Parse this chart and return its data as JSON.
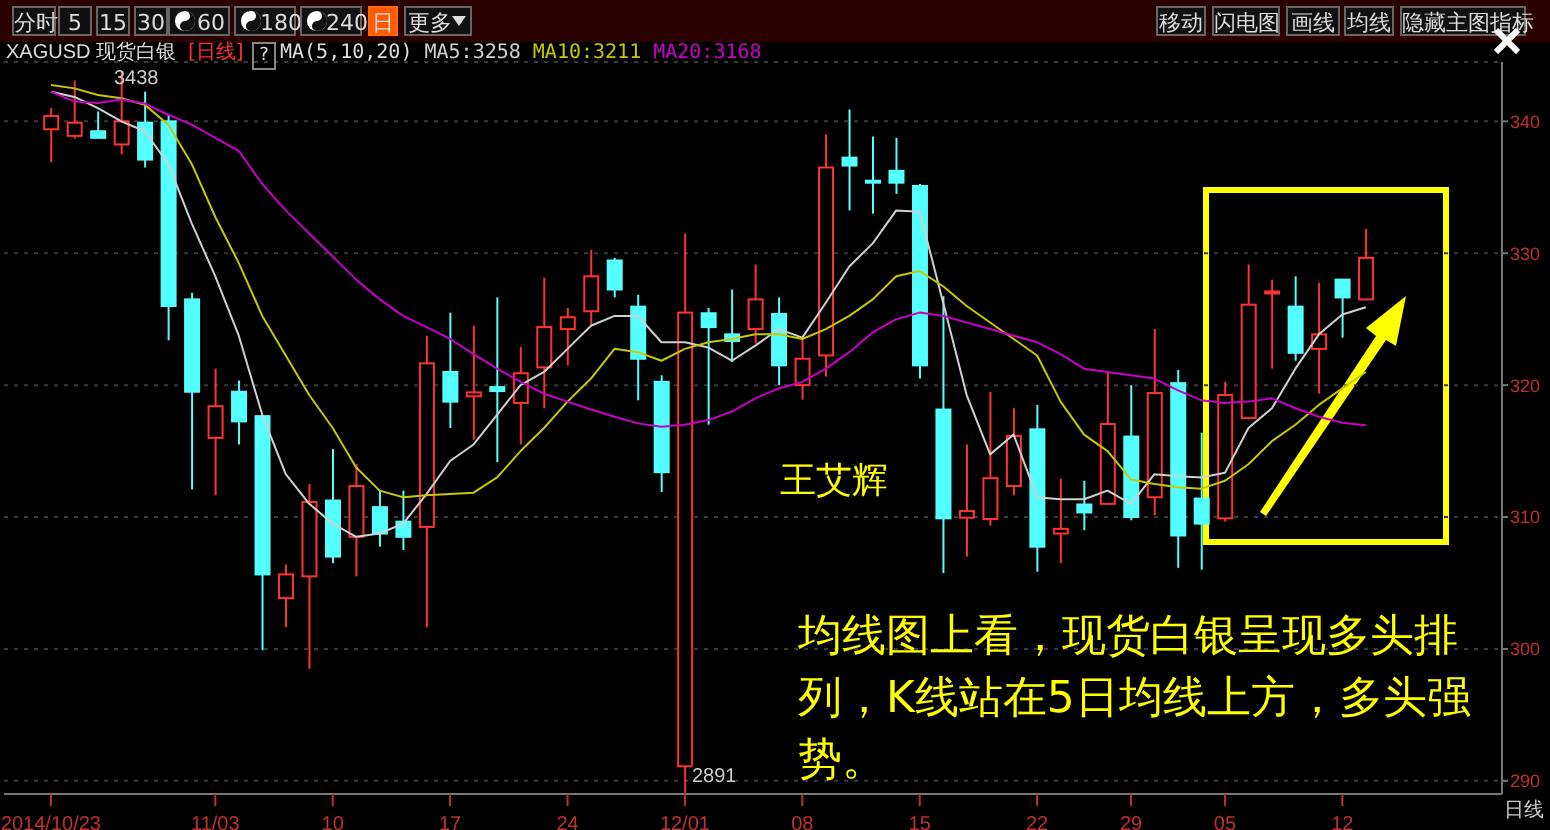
{
  "chart_data": {
    "type": "candlestick",
    "title": "XAGUSD 现货白银",
    "subtitle": "[日线]",
    "legend_title": "MA(5,10,20)",
    "categories": [
      "2014/10/23",
      null,
      null,
      null,
      null,
      null,
      null,
      "11/03",
      null,
      null,
      null,
      null,
      "10",
      null,
      null,
      null,
      null,
      "17",
      null,
      null,
      null,
      null,
      "24",
      null,
      null,
      null,
      null,
      "12/01",
      null,
      null,
      null,
      null,
      "08",
      null,
      null,
      null,
      null,
      "15",
      null,
      null,
      null,
      null,
      "22",
      null,
      null,
      null,
      "29",
      null,
      null,
      null,
      "05",
      null,
      null,
      null,
      null,
      "12",
      null
    ],
    "ohlc": [
      [
        339.4,
        341,
        336.9,
        340.4
      ],
      [
        338.9,
        343.1,
        338.7,
        339.9
      ],
      [
        339.25,
        340.75,
        338.7,
        338.75
      ],
      [
        338.25,
        343.8,
        337.5,
        340
      ],
      [
        339.9,
        342.25,
        336.5,
        337.1
      ],
      [
        340,
        340.5,
        323.4,
        326
      ],
      [
        326.5,
        327,
        312.1,
        319.5
      ],
      [
        316,
        321.25,
        311.65,
        318.4
      ],
      [
        319.5,
        320.35,
        315.5,
        317.25
      ],
      [
        317.65,
        317.75,
        299.9,
        305.65
      ],
      [
        303.85,
        306.4,
        301.65,
        305.65
      ],
      [
        305.5,
        312.5,
        298.5,
        311.15
      ],
      [
        311.25,
        315.15,
        306.5,
        307
      ],
      [
        308.5,
        314,
        305.5,
        312.35
      ],
      [
        310.75,
        312,
        307.75,
        308.75
      ],
      [
        309.65,
        312,
        307.5,
        308.5
      ],
      [
        309.25,
        323.75,
        301.65,
        321.65
      ],
      [
        321,
        325.5,
        316.75,
        318.75
      ],
      [
        319.15,
        324.5,
        315.85,
        319.45
      ],
      [
        319.85,
        326.65,
        314.15,
        319.55
      ],
      [
        318.65,
        322.9,
        315.5,
        320.9
      ],
      [
        321.35,
        328.15,
        318.25,
        324.4
      ],
      [
        324.25,
        325.85,
        321.5,
        325.15
      ],
      [
        325.6,
        330.25,
        324.5,
        328.25
      ],
      [
        329.45,
        329.65,
        326.65,
        327.25
      ],
      [
        325.95,
        326.85,
        318.85,
        322
      ],
      [
        320.25,
        320.75,
        311.9,
        313.4
      ],
      [
        291.1,
        331.5,
        289.1,
        325.5
      ],
      [
        325.45,
        325.85,
        317,
        324.4
      ],
      [
        323.85,
        327.25,
        321.75,
        323.35
      ],
      [
        324.25,
        329.15,
        323.15,
        326.5
      ],
      [
        325.4,
        326.65,
        320,
        321.5
      ],
      [
        320,
        323.5,
        318.9,
        322
      ],
      [
        322.25,
        339,
        320.65,
        336.5
      ],
      [
        337.25,
        340.9,
        333.25,
        336.65
      ],
      [
        335.5,
        338.85,
        333,
        335.4
      ],
      [
        336.25,
        338.75,
        334.5,
        335.35
      ],
      [
        335.1,
        335.25,
        320.5,
        321.5
      ],
      [
        318.15,
        326.75,
        305.75,
        309.9
      ],
      [
        309.95,
        315.5,
        307,
        310.45
      ],
      [
        309.85,
        319.5,
        309.35,
        312.95
      ],
      [
        312.35,
        318.25,
        311.65,
        316.15
      ],
      [
        316.65,
        318.5,
        305.85,
        307.75
      ],
      [
        308.75,
        312.9,
        306.5,
        309.1
      ],
      [
        310.95,
        312.75,
        309,
        310.35
      ],
      [
        311,
        321,
        311,
        317.05
      ],
      [
        316.1,
        320,
        309.75,
        310
      ],
      [
        311.5,
        324.25,
        310.15,
        319.4
      ],
      [
        320.15,
        321.15,
        306.15,
        308.6
      ],
      [
        311.4,
        316.4,
        306,
        309.5
      ],
      [
        309.9,
        320.25,
        309.65,
        319.25
      ],
      [
        317.5,
        329.15,
        317.4,
        326.1
      ],
      [
        326.95,
        328,
        321.25,
        327.1
      ],
      [
        325.95,
        328.25,
        321.85,
        322.45
      ],
      [
        322.75,
        327.75,
        319.35,
        323.85
      ],
      [
        328,
        328,
        323.6,
        326.65
      ],
      [
        326.5,
        331.85,
        326.5,
        329.65
      ]
    ],
    "colors": [
      "#ff3232",
      "#ff3232",
      "#54ffff",
      "#ff3232",
      "#54ffff",
      "#54ffff",
      "#54ffff",
      "#ff3232",
      "#54ffff",
      "#54ffff",
      "#ff3232",
      "#ff3232",
      "#54ffff",
      "#ff3232",
      "#54ffff",
      "#54ffff",
      "#ff3232",
      "#54ffff",
      "#ff3232",
      "#54ffff",
      "#ff3232",
      "#ff3232",
      "#ff3232",
      "#ff3232",
      "#54ffff",
      "#54ffff",
      "#54ffff",
      "#ff3232",
      "#54ffff",
      "#54ffff",
      "#ff3232",
      "#54ffff",
      "#ff3232",
      "#ff3232",
      "#54ffff",
      "#54ffff",
      "#54ffff",
      "#54ffff",
      "#54ffff",
      "#ff3232",
      "#ff3232",
      "#ff3232",
      "#54ffff",
      "#ff3232",
      "#54ffff",
      "#ff3232",
      "#54ffff",
      "#ff3232",
      "#54ffff",
      "#54ffff",
      "#ff3232",
      "#ff3232",
      "#ff3232",
      "#54ffff",
      "#ff3232",
      "#54ffff",
      "#ff3232"
    ],
    "series": [
      {
        "type": "line",
        "name": "MA5:3258",
        "color": "#d0d0d0",
        "values": [
          342.25,
          341.85,
          341,
          340,
          339.25,
          336.75,
          332.25,
          328.25,
          323.75,
          317.75,
          313.25,
          311,
          309.5,
          308.5,
          308.75,
          309.5,
          311.75,
          314.25,
          315.5,
          317.75,
          320,
          321,
          322.75,
          324.5,
          325.25,
          325.25,
          323.25,
          323.25,
          322.85,
          321.85,
          323,
          324.25,
          323.6,
          326.25,
          329,
          330.75,
          333.25,
          333.15,
          326.25,
          319.25,
          314.75,
          316.25,
          311.5,
          311.35,
          311.35,
          312,
          311,
          313.25,
          313.1,
          313,
          313.35,
          316.75,
          318.25,
          321.25,
          323.85,
          325.35,
          325.9
        ]
      },
      {
        "type": "line",
        "name": "MA10:3211",
        "color": "#c8c800",
        "values": [
          342.75,
          342.5,
          342,
          341.75,
          341.25,
          339.75,
          336.75,
          332.75,
          329.25,
          325.25,
          322.25,
          319.25,
          316.75,
          313.75,
          312,
          311.5,
          311.65,
          311.75,
          311.85,
          313,
          315,
          316.75,
          318.75,
          320.5,
          322.75,
          322.5,
          321.85,
          322.75,
          323.25,
          323.5,
          323.85,
          323.85,
          323.5,
          324.25,
          325.25,
          326.5,
          328.25,
          328.65,
          327.5,
          326,
          324.75,
          323.5,
          322.25,
          318.75,
          316.25,
          315,
          312.85,
          312.5,
          312.25,
          312.15,
          312.75,
          314,
          315.75,
          317,
          318.5,
          319.75,
          321
        ]
      },
      {
        "type": "line",
        "name": "MA20:3168",
        "color": "#c800c8",
        "values": [
          342.25,
          341.5,
          341.4,
          341.65,
          341.35,
          340.5,
          339.75,
          338.75,
          337.75,
          335.25,
          333.25,
          331.5,
          329.75,
          328,
          326.5,
          325.25,
          324.4,
          323.5,
          322.35,
          321.25,
          320.25,
          319.35,
          318.75,
          318.15,
          317.6,
          317.1,
          316.85,
          317,
          317.35,
          318,
          319,
          319.75,
          320.25,
          321.25,
          322.5,
          324,
          325,
          325.5,
          325.25,
          324.75,
          324.25,
          323.75,
          323.25,
          322.35,
          321.25,
          321,
          320.75,
          320.5,
          319.6,
          318.85,
          318.65,
          318.75,
          319,
          318.25,
          317.6,
          317.15,
          316.95
        ]
      }
    ],
    "ylim": [
      289,
      344.5
    ],
    "yticks": [
      290,
      300,
      310,
      320,
      330,
      340
    ],
    "grid": "y",
    "legend": "top left",
    "annotations": [
      "分时",
      "5",
      "15",
      "30",
      "60",
      "180",
      "240",
      "日",
      "更多",
      "移动",
      "闪电图",
      "画线",
      "均线",
      "隐藏主图指标",
      "?",
      "王艾辉",
      "均线图上看，现货白银呈现多头排列，K线站在5日均线上方，多头强势。",
      "3438",
      "2891",
      "日线"
    ]
  }
}
